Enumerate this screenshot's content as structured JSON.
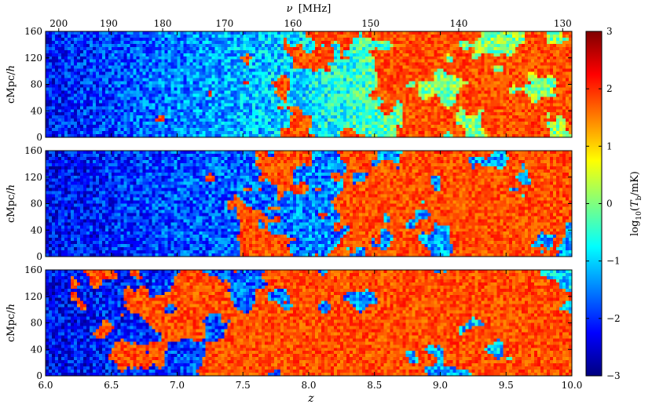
{
  "chart_data": {
    "type": "heatmap",
    "layout": "three stacked panels sharing x axis",
    "top_axis": {
      "label_prefix": "ν",
      "label_unit": "[MHz]",
      "ticks": [
        "200",
        "190",
        "180",
        "170",
        "160",
        "150",
        "140",
        "130"
      ],
      "tick_positions_z": [
        6.1,
        6.48,
        6.89,
        7.36,
        7.88,
        8.47,
        9.14,
        9.93
      ]
    },
    "x_axis": {
      "label": "z",
      "range": [
        6.0,
        10.0
      ],
      "ticks": [
        "6.0",
        "6.5",
        "7.0",
        "7.5",
        "8.0",
        "8.5",
        "9.0",
        "9.5",
        "10.0"
      ]
    },
    "y_axis": {
      "label": "cMpc/h",
      "range": [
        0,
        160
      ],
      "ticks": [
        "0",
        "40",
        "80",
        "120",
        "160"
      ]
    },
    "colorbar": {
      "label": "log10(Tb/mK)",
      "range": [
        -3,
        3
      ],
      "ticks": [
        "−3",
        "−2",
        "−1",
        "0",
        "1",
        "2",
        "3"
      ],
      "colormap": "jet",
      "stops": [
        "#00007f",
        "#0000ff",
        "#007fff",
        "#00ffff",
        "#7fff7f",
        "#ffff00",
        "#ff7f00",
        "#ff0000",
        "#7f0000"
      ]
    },
    "panels": [
      {
        "id": "top",
        "background_trend": [
          {
            "z": 6.0,
            "value": -2.2
          },
          {
            "z": 7.0,
            "value": -1.5
          },
          {
            "z": 8.0,
            "value": -0.9
          },
          {
            "z": 8.5,
            "value": -0.3
          },
          {
            "z": 9.0,
            "value": 0.0
          },
          {
            "z": 10.0,
            "value": 0.1
          }
        ],
        "bright_fraction_trend": [
          {
            "z": 6.0,
            "f": 0.0
          },
          {
            "z": 6.8,
            "f": 0.05
          },
          {
            "z": 7.5,
            "f": 0.15
          },
          {
            "z": 8.2,
            "f": 0.35
          },
          {
            "z": 9.0,
            "f": 0.45
          },
          {
            "z": 10.0,
            "f": 0.55
          }
        ],
        "bright_value": 1.8
      },
      {
        "id": "middle",
        "background_trend": [
          {
            "z": 6.0,
            "value": -2.3
          },
          {
            "z": 7.0,
            "value": -1.8
          },
          {
            "z": 8.0,
            "value": -1.5
          },
          {
            "z": 9.0,
            "value": -1.3
          },
          {
            "z": 10.0,
            "value": -1.2
          }
        ],
        "bright_fraction_trend": [
          {
            "z": 6.0,
            "f": 0.0
          },
          {
            "z": 6.5,
            "f": 0.04
          },
          {
            "z": 7.2,
            "f": 0.18
          },
          {
            "z": 8.0,
            "f": 0.35
          },
          {
            "z": 8.5,
            "f": 0.55
          },
          {
            "z": 9.5,
            "f": 0.65
          },
          {
            "z": 10.0,
            "f": 0.7
          }
        ],
        "bright_value": 1.8
      },
      {
        "id": "bottom",
        "background_trend": [
          {
            "z": 6.0,
            "value": -2.3
          },
          {
            "z": 7.0,
            "value": -1.9
          },
          {
            "z": 8.0,
            "value": -1.5
          },
          {
            "z": 9.0,
            "value": -1.2
          },
          {
            "z": 10.0,
            "value": -1.0
          }
        ],
        "bright_fraction_trend": [
          {
            "z": 6.0,
            "f": 0.05
          },
          {
            "z": 6.5,
            "f": 0.25
          },
          {
            "z": 7.2,
            "f": 0.4
          },
          {
            "z": 8.0,
            "f": 0.6
          },
          {
            "z": 8.3,
            "f": 0.85
          },
          {
            "z": 10.0,
            "f": 0.9
          }
        ],
        "bright_value": 1.8
      }
    ]
  }
}
